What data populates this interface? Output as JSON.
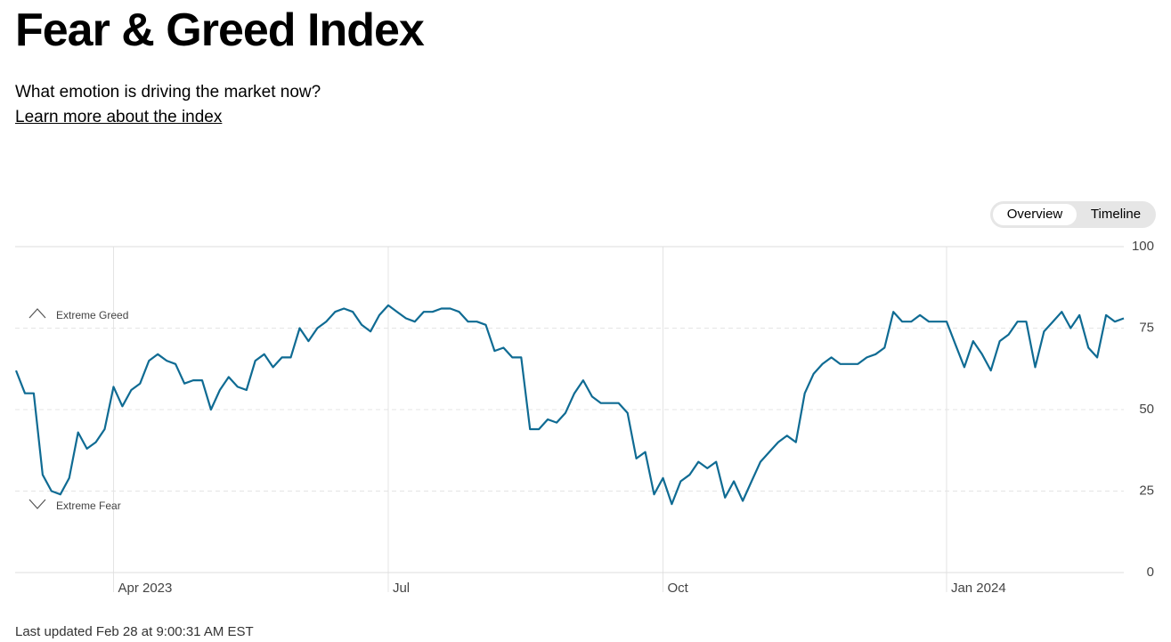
{
  "header": {
    "title": "Fear & Greed Index",
    "subtitle": "What emotion is driving the market now?",
    "link": "Learn more about the index"
  },
  "tabs": [
    "Overview",
    "Timeline"
  ],
  "chart_data": {
    "type": "line",
    "annotations": [
      "Extreme Greed",
      "Extreme Fear"
    ],
    "categories": [
      null,
      null,
      null,
      null,
      null,
      null,
      null,
      null,
      null,
      null,
      null,
      "Apr 2023",
      null,
      null,
      null,
      null,
      null,
      null,
      null,
      null,
      null,
      null,
      null,
      null,
      null,
      null,
      null,
      null,
      null,
      null,
      null,
      null,
      null,
      null,
      null,
      null,
      null,
      null,
      null,
      null,
      null,
      null,
      "Jul",
      null,
      null,
      null,
      null,
      null,
      null,
      null,
      null,
      null,
      null,
      null,
      null,
      null,
      null,
      null,
      null,
      null,
      null,
      null,
      null,
      null,
      null,
      null,
      null,
      null,
      null,
      null,
      null,
      null,
      null,
      "Oct",
      null,
      null,
      null,
      null,
      null,
      null,
      null,
      null,
      null,
      null,
      null,
      null,
      null,
      null,
      null,
      null,
      null,
      null,
      null,
      null,
      null,
      null,
      null,
      null,
      null,
      null,
      null,
      null,
      null,
      null,
      null,
      "Jan 2024",
      null,
      null,
      null,
      null,
      null,
      null,
      null,
      null,
      null,
      null,
      null,
      null,
      null,
      null,
      null,
      null,
      null,
      null,
      null,
      null
    ],
    "values": [
      62,
      55,
      55,
      30,
      25,
      24,
      29,
      43,
      38,
      40,
      44,
      57,
      51,
      56,
      58,
      65,
      67,
      65,
      64,
      58,
      59,
      59,
      50,
      56,
      60,
      57,
      56,
      65,
      67,
      63,
      66,
      66,
      75,
      71,
      75,
      77,
      80,
      81,
      80,
      76,
      74,
      79,
      82,
      80,
      78,
      77,
      80,
      80,
      81,
      81,
      80,
      77,
      77,
      76,
      68,
      69,
      66,
      66,
      44,
      44,
      47,
      46,
      49,
      55,
      59,
      54,
      52,
      52,
      52,
      49,
      35,
      37,
      24,
      29,
      21,
      28,
      30,
      34,
      32,
      34,
      23,
      28,
      22,
      28,
      34,
      37,
      40,
      42,
      40,
      55,
      61,
      64,
      66,
      64,
      64,
      64,
      66,
      67,
      69,
      80,
      77,
      77,
      79,
      77,
      77,
      77,
      70,
      63,
      71,
      67,
      62,
      71,
      73,
      77,
      77,
      63,
      74,
      77,
      80,
      75,
      79,
      69,
      66,
      79,
      77,
      78
    ],
    "color": "#0f6b93",
    "ylim": [
      0,
      100
    ],
    "yticks": [
      0,
      25,
      50,
      75,
      100
    ],
    "grid": true
  },
  "footer": "Last updated Feb 28 at 9:00:31 AM EST"
}
